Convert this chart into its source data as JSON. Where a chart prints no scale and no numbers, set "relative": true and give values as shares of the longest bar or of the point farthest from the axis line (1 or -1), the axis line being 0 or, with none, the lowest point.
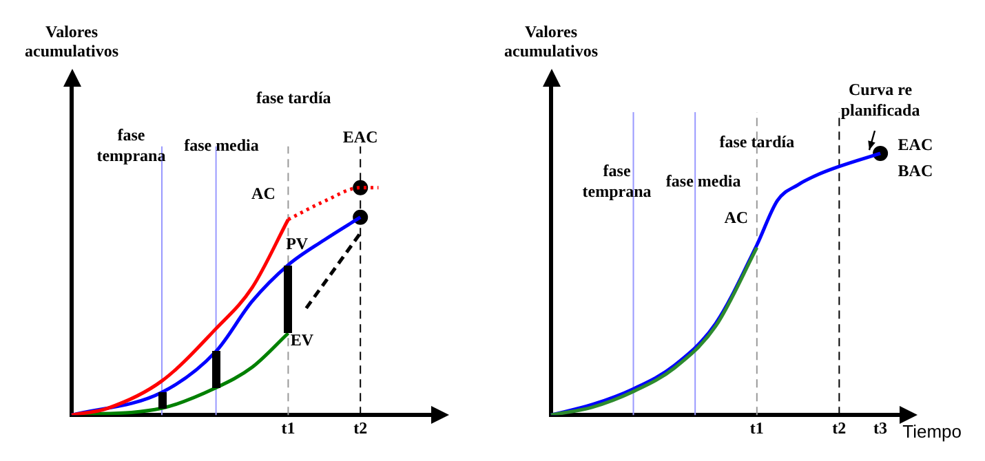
{
  "chart_data": [
    {
      "type": "line",
      "relative": true,
      "ylabel": "Valores acumulativos",
      "categories": [
        null,
        null,
        null,
        null,
        null,
        null,
        null,
        null,
        null,
        null,
        null,
        null,
        "t1",
        null,
        null,
        null,
        "t2",
        null,
        null,
        null,
        null
      ],
      "tick_labels": "x",
      "ref_lines": [
        {
          "axis": "x",
          "value": "t1",
          "color": "#999999",
          "line_style": "dashed"
        },
        {
          "axis": "x",
          "value": "t2",
          "color": "#000000",
          "line_style": "dashed"
        }
      ],
      "annotations": [
        "fase temprana",
        "fase media",
        "fase tardía"
      ],
      "series": [
        {
          "name": "AC",
          "color": "#ff0000",
          "values": [
            0,
            null,
            0.03,
            null,
            null,
            0.15,
            null,
            null,
            0.38,
            null,
            0.56,
            null,
            0.86,
            null,
            null,
            null,
            null,
            null,
            null,
            null,
            null
          ]
        },
        {
          "color": "#ff0000",
          "line_style": "dotted",
          "values": [
            null,
            null,
            null,
            null,
            null,
            null,
            null,
            null,
            null,
            null,
            null,
            null,
            0.86,
            null,
            0.94,
            null,
            1.0,
            1.0,
            null,
            null,
            null
          ]
        },
        {
          "name": "PV",
          "color": "#0000ff",
          "values": [
            0,
            null,
            null,
            null,
            null,
            0.1,
            null,
            null,
            0.28,
            null,
            0.5,
            null,
            0.66,
            null,
            0.77,
            null,
            0.87,
            null,
            null,
            null,
            null
          ]
        },
        {
          "name": "EV",
          "color": "#008000",
          "values": [
            0,
            null,
            null,
            null,
            null,
            0.03,
            null,
            null,
            0.12,
            null,
            0.21,
            null,
            0.36,
            null,
            null,
            null,
            null,
            null,
            null,
            null,
            null
          ]
        },
        {
          "color": "#000000",
          "line_style": "dashed",
          "values": [
            null,
            null,
            null,
            null,
            null,
            null,
            null,
            null,
            null,
            null,
            null,
            null,
            null,
            0.47,
            null,
            null,
            0.8,
            null,
            null,
            null,
            null
          ]
        },
        {
          "type": "scatter",
          "name": "EAC",
          "color": "#000000",
          "marker": "circle",
          "values": [
            null,
            null,
            null,
            null,
            null,
            null,
            null,
            null,
            null,
            null,
            null,
            null,
            null,
            null,
            null,
            null,
            1.0,
            null,
            null,
            null,
            null
          ]
        },
        {
          "type": "scatter",
          "color": "#000000",
          "marker": "circle",
          "values": [
            null,
            null,
            null,
            null,
            null,
            null,
            null,
            null,
            null,
            null,
            null,
            null,
            null,
            null,
            null,
            null,
            0.87,
            null,
            null,
            null,
            null
          ]
        }
      ]
    },
    {
      "type": "line",
      "relative": true,
      "ylabel": "Valores acumulativos",
      "xlabel": "Tiempo",
      "categories": [
        null,
        null,
        null,
        null,
        null,
        null,
        null,
        null,
        null,
        null,
        "t1",
        null,
        null,
        null,
        "t2",
        null,
        "t3",
        null
      ],
      "tick_labels": "x",
      "ref_lines": [
        {
          "axis": "x",
          "value": "t1",
          "color": "#999999",
          "line_style": "dashed"
        },
        {
          "axis": "x",
          "value": "t2",
          "color": "#000000",
          "line_style": "dashed"
        }
      ],
      "annotations": [
        "fase temprana",
        "fase media",
        "fase tardía",
        "Curva re planificada",
        "EAC",
        "BAC"
      ],
      "series": [
        {
          "name": "AC",
          "color": "#2e8b2e",
          "values": [
            0,
            null,
            0.03,
            null,
            0.09,
            null,
            0.18,
            null,
            0.34,
            null,
            0.64,
            null,
            null,
            null,
            null,
            null,
            null,
            null
          ]
        },
        {
          "color": "#0000ff",
          "values": [
            0,
            null,
            0.04,
            null,
            0.1,
            null,
            0.19,
            null,
            0.35,
            null,
            0.65,
            0.82,
            0.88,
            0.92,
            0.95,
            null,
            1.0,
            null
          ]
        },
        {
          "type": "scatter",
          "color": "#000000",
          "marker": "circle",
          "values": [
            null,
            null,
            null,
            null,
            null,
            null,
            null,
            null,
            null,
            null,
            null,
            null,
            null,
            null,
            null,
            null,
            1.0,
            null
          ]
        }
      ]
    }
  ]
}
